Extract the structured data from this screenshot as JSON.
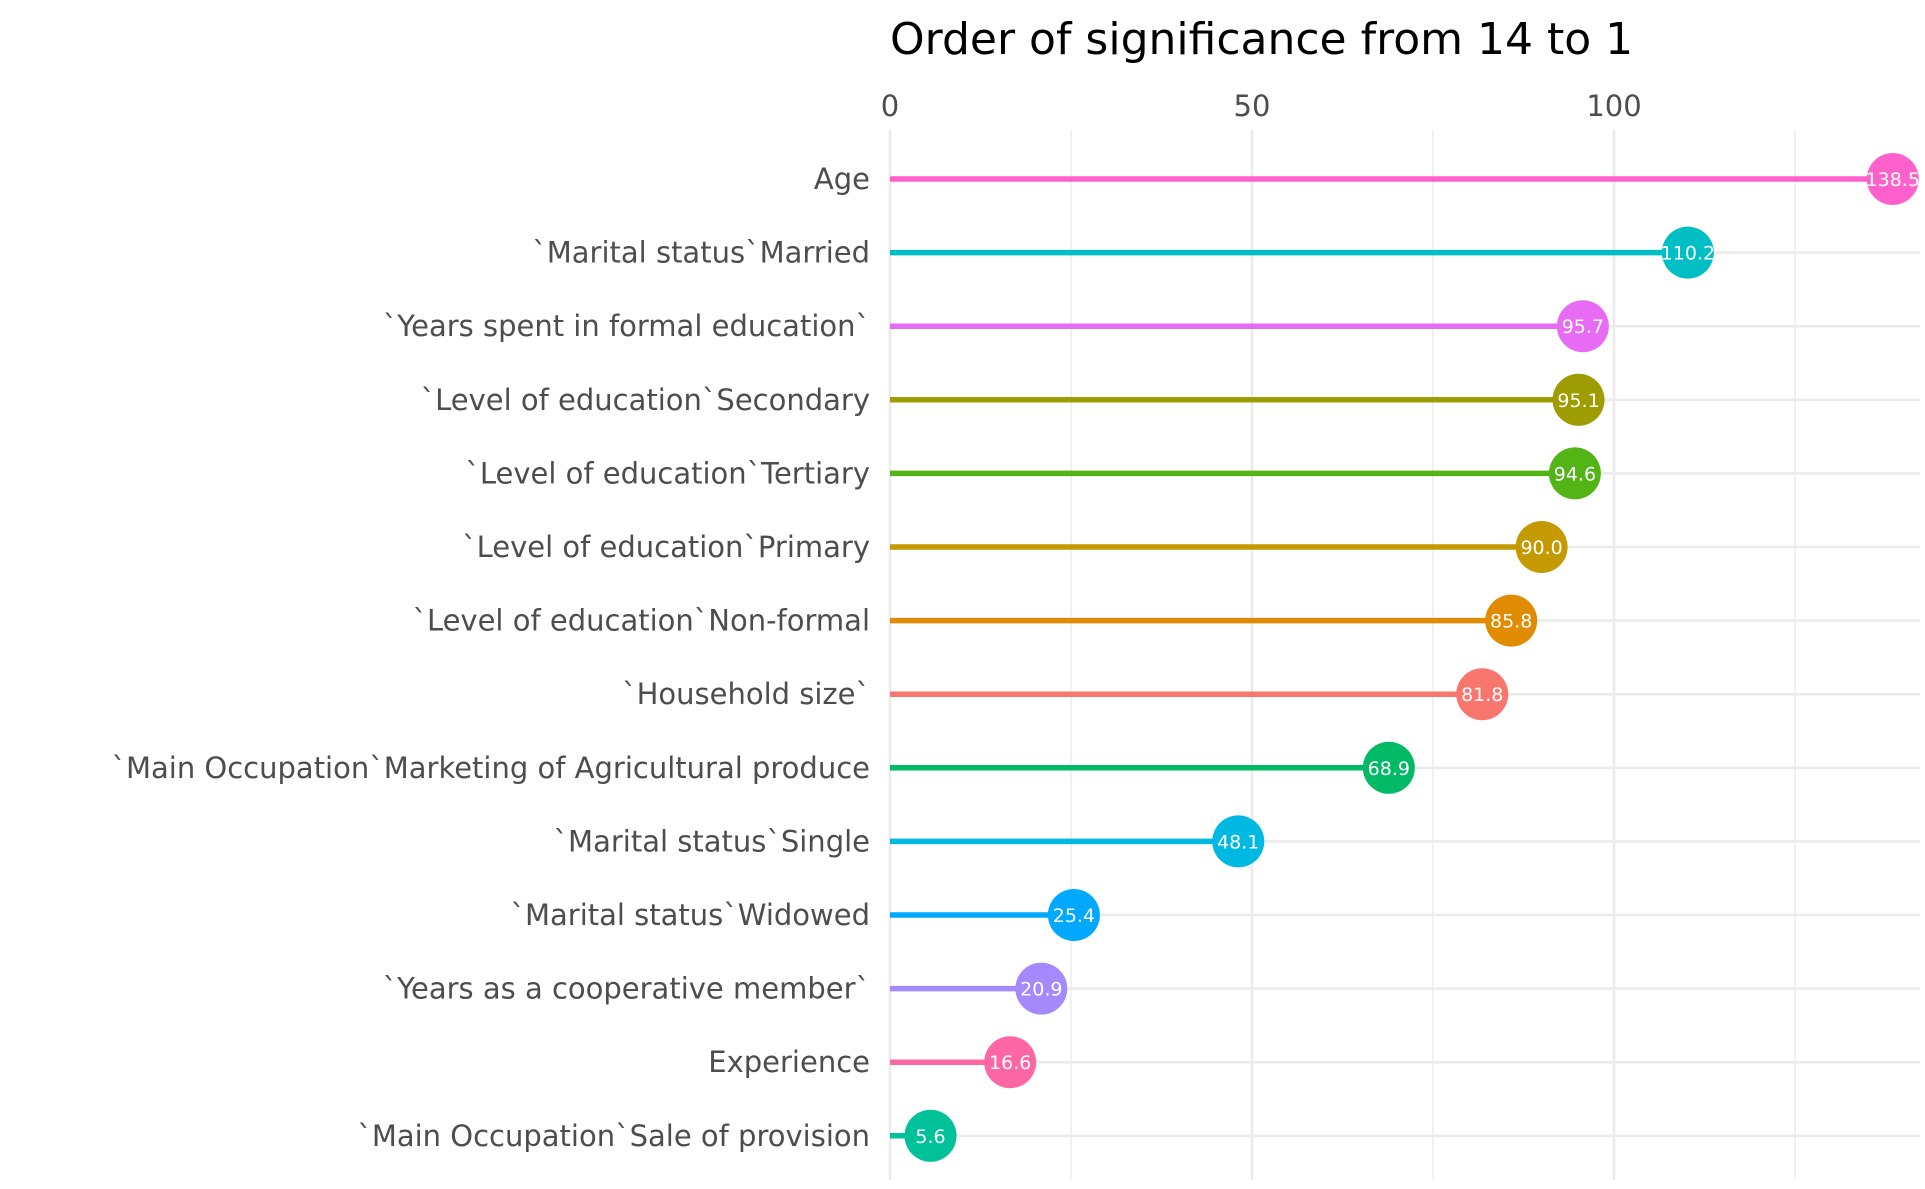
{
  "chart_data": {
    "type": "lollipop",
    "title": "Order of significance from 14 to 1",
    "xlabel": "",
    "ylabel": "",
    "xlim": [
      0,
      140
    ],
    "x_ticks": [
      0,
      50,
      100
    ],
    "x_tick_labels": [
      "0",
      "50",
      "100"
    ],
    "axis_position": "top",
    "grid": true,
    "legend": "none",
    "categories": [
      "Age",
      "`Marital status`Married",
      "`Years spent in formal education`",
      "`Level  of education`Secondary",
      "`Level  of education`Tertiary",
      "`Level  of education`Primary",
      "`Level  of education`Non-formal",
      "`Household size`",
      "`Main Occupation`Marketing of Agricultural produce",
      "`Marital status`Single",
      "`Marital status`Widowed",
      "`Years as a cooperative member`",
      "Experience",
      "`Main Occupation`Sale of provision"
    ],
    "values": [
      138.5,
      110.2,
      95.7,
      95.1,
      94.6,
      90.0,
      85.8,
      81.8,
      68.9,
      48.1,
      25.4,
      20.9,
      16.6,
      5.6
    ],
    "value_labels": [
      "138.5",
      "110.2",
      "95.7",
      "95.1",
      "94.6",
      "90.0",
      "85.8",
      "81.8",
      "68.9",
      "48.1",
      "25.4",
      "20.9",
      "16.6",
      "5.6"
    ],
    "colors": [
      "#FF61CC",
      "#00BFC4",
      "#E76BF3",
      "#9D9C00",
      "#52B415",
      "#C49A00",
      "#E08B00",
      "#F8766D",
      "#00BA65",
      "#00B9E3",
      "#00A9FF",
      "#A58AFF",
      "#FF67A4",
      "#00C19A"
    ]
  }
}
